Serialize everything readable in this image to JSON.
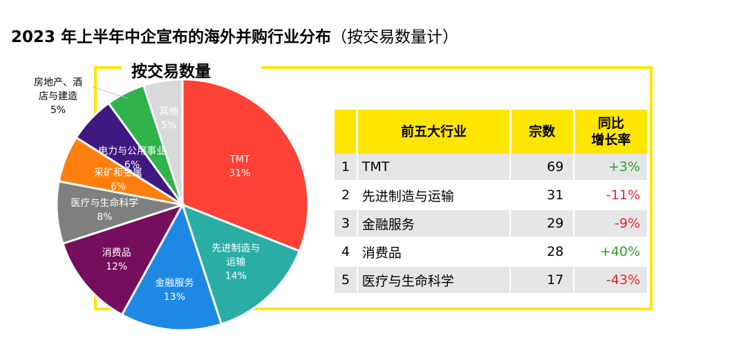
{
  "title_main": "2023 年上半年中企宣布的海外并购行业分布",
  "title_paren": "（按交易数量计）",
  "frame_title": "按交易数量",
  "colors": {
    "accent_yellow": "#ffe600",
    "positive": "#2ca02c",
    "negative": "#e8242a"
  },
  "chart_data": {
    "type": "pie",
    "title": "按交易数量",
    "slices": [
      {
        "label": "TMT",
        "value": 31,
        "display": "31%",
        "color": "#ff4136"
      },
      {
        "label": "先进制造与运输",
        "value": 14,
        "display": "14%",
        "color": "#2aada5"
      },
      {
        "label": "金融服务",
        "value": 13,
        "display": "13%",
        "color": "#1e88e5"
      },
      {
        "label": "消费品",
        "value": 12,
        "display": "12%",
        "color": "#750e5c"
      },
      {
        "label": "医疗与生命科学",
        "value": 8,
        "display": "8%",
        "color": "#7f7f7f"
      },
      {
        "label": "采矿和金属",
        "value": 6,
        "display": "6%",
        "color": "#ff7f0e"
      },
      {
        "label": "电力与公用事业",
        "value": 6,
        "display": "6%",
        "color": "#3f197f"
      },
      {
        "label": "房地产、酒店与建造",
        "value": 5,
        "display": "5%",
        "color": "#2fb34a"
      },
      {
        "label": "其他",
        "value": 5,
        "display": "5%",
        "color": "#d9d9d9"
      }
    ]
  },
  "table": {
    "headers": [
      "",
      "前五大行业",
      "宗数",
      "同比\n增长率"
    ],
    "rows": [
      {
        "rank": "1",
        "industry": "TMT",
        "count": "69",
        "growth": "+3%",
        "sign": "pos"
      },
      {
        "rank": "2",
        "industry": "先进制造与运输",
        "count": "31",
        "growth": "-11%",
        "sign": "neg"
      },
      {
        "rank": "3",
        "industry": "金融服务",
        "count": "29",
        "growth": "-9%",
        "sign": "neg"
      },
      {
        "rank": "4",
        "industry": "消费品",
        "count": "28",
        "growth": "+40%",
        "sign": "pos"
      },
      {
        "rank": "5",
        "industry": "医疗与生命科学",
        "count": "17",
        "growth": "-43%",
        "sign": "neg"
      }
    ]
  }
}
